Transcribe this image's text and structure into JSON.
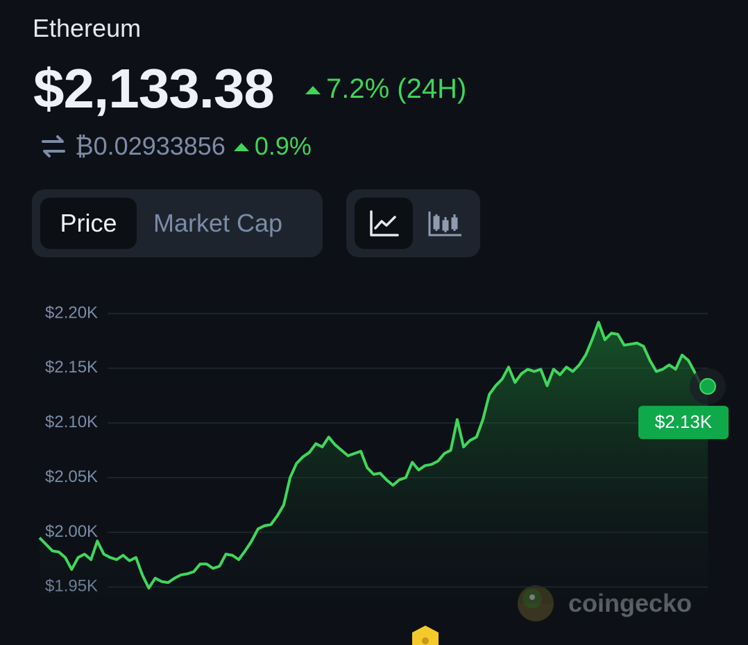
{
  "header": {
    "name": "Ethereum",
    "price": "$2,133.38",
    "change_24h": "7.2% (24H)",
    "btc_price": "₿0.02933856",
    "btc_change": "0.9%"
  },
  "tabs": [
    "Price",
    "Market Cap"
  ],
  "watermark": "coingecko",
  "chart_data": {
    "type": "line",
    "color": "#40d65c",
    "grid": true,
    "values": [
      1995,
      1989,
      1983,
      1982,
      1977,
      1966,
      1977,
      1980,
      1975,
      1992,
      1980,
      1977,
      1975,
      1979,
      1974,
      1977,
      1961,
      1949,
      1958,
      1955,
      1954,
      1958,
      1961,
      1962,
      1964,
      1971,
      1971,
      1967,
      1969,
      1980,
      1979,
      1975,
      1983,
      1992,
      2003,
      2006,
      2007,
      2015,
      2025,
      2050,
      2063,
      2069,
      2073,
      2081,
      2078,
      2087,
      2080,
      2075,
      2070,
      2072,
      2074,
      2059,
      2053,
      2054,
      2048,
      2043,
      2048,
      2050,
      2064,
      2057,
      2061,
      2062,
      2065,
      2072,
      2075,
      2103,
      2078,
      2084,
      2087,
      2103,
      2126,
      2134,
      2140,
      2151,
      2137,
      2145,
      2149,
      2147,
      2149,
      2134,
      2149,
      2144,
      2151,
      2147,
      2153,
      2162,
      2176,
      2192,
      2176,
      2182,
      2181,
      2171,
      2172,
      2173,
      2170,
      2157,
      2147,
      2149,
      2153,
      2149,
      2162,
      2157,
      2146,
      2134,
      2133.38
    ],
    "end_label": {
      "value": 2133.38,
      "label": "$2.13K",
      "color": "#0fa94b"
    },
    "ylim": [
      1935,
      2200
    ],
    "yticks": [
      {
        "value": 1950,
        "label": "$1.95K"
      },
      {
        "value": 2000,
        "label": "$2.00K"
      },
      {
        "value": 2050,
        "label": "$2.05K"
      },
      {
        "value": 2100,
        "label": "$2.10K"
      },
      {
        "value": 2150,
        "label": "$2.15K"
      },
      {
        "value": 2200,
        "label": "$2.20K"
      }
    ]
  }
}
